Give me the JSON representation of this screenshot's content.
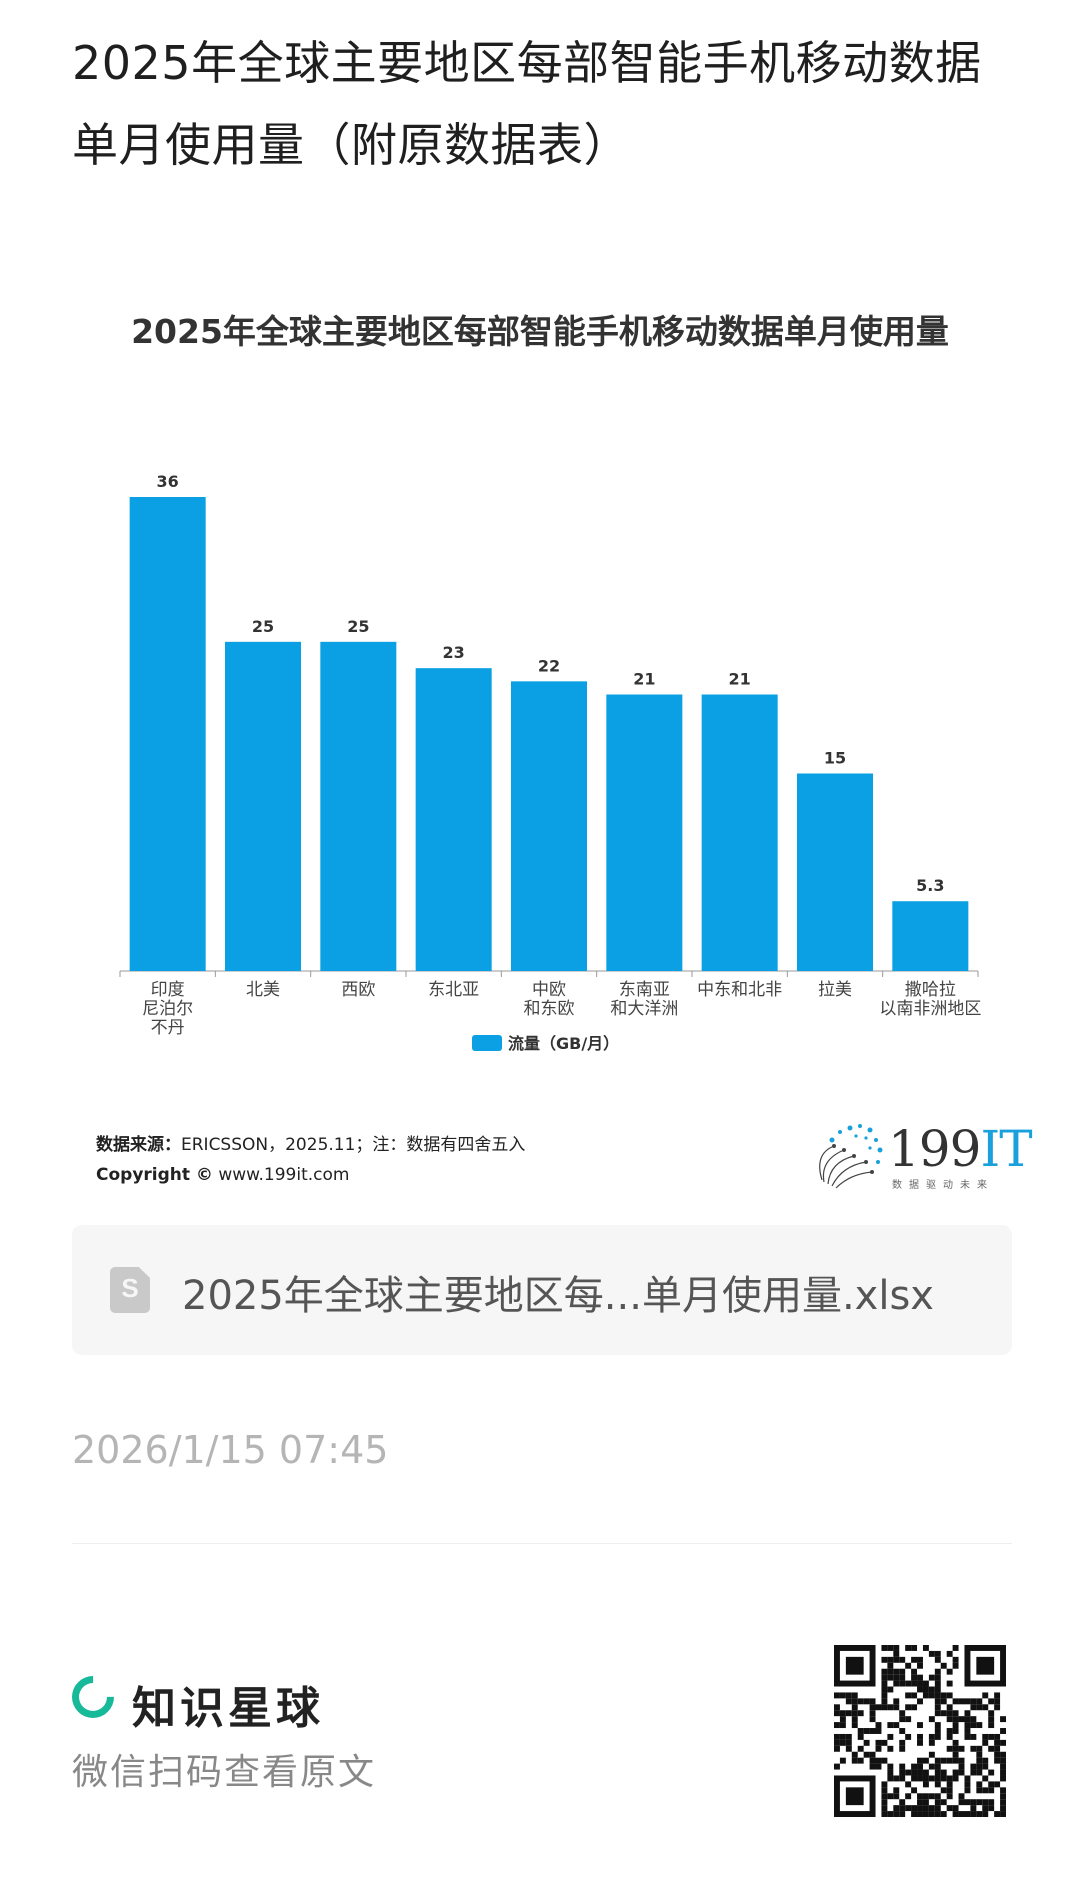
{
  "post": {
    "title": "2025年全球主要地区每部智能手机移动数据单月使用量（附原数据表）"
  },
  "chart_data": {
    "type": "bar",
    "title": "2025年全球主要地区每部智能手机移动数据单月使用量",
    "categories": [
      "印度\n尼泊尔\n不丹",
      "北美",
      "西欧",
      "东北亚",
      "中欧\n和东欧",
      "东南亚\n和大洋洲",
      "中东和北非",
      "拉美",
      "撒哈拉\n以南非洲地区"
    ],
    "series": [
      {
        "name": "流量（GB/月）",
        "values": [
          36,
          25,
          25,
          23,
          22,
          21,
          21,
          15,
          5.3
        ]
      }
    ],
    "ylim": [
      0,
      36
    ],
    "grid": false,
    "legend": "bottom",
    "bar_color": "#0aa0e3"
  },
  "source": {
    "label": "数据来源：",
    "text": "ERICSSON，2025.11；注：数据有四舍五入",
    "copyright_label": "Copyright ©",
    "copyright_url": "www.199it.com"
  },
  "logo": {
    "text_num": "199",
    "text_it": "IT",
    "tagline": "数据驱动未来"
  },
  "attachment": {
    "icon": "spreadsheet-file-icon",
    "icon_letter": "S",
    "file_name": "2025年全球主要地区每...单月使用量.xlsx"
  },
  "meta": {
    "timestamp": "2026/1/15 07:45"
  },
  "footer": {
    "brand": "知识星球",
    "hint": "微信扫码查看原文",
    "accent": "#16b998"
  }
}
